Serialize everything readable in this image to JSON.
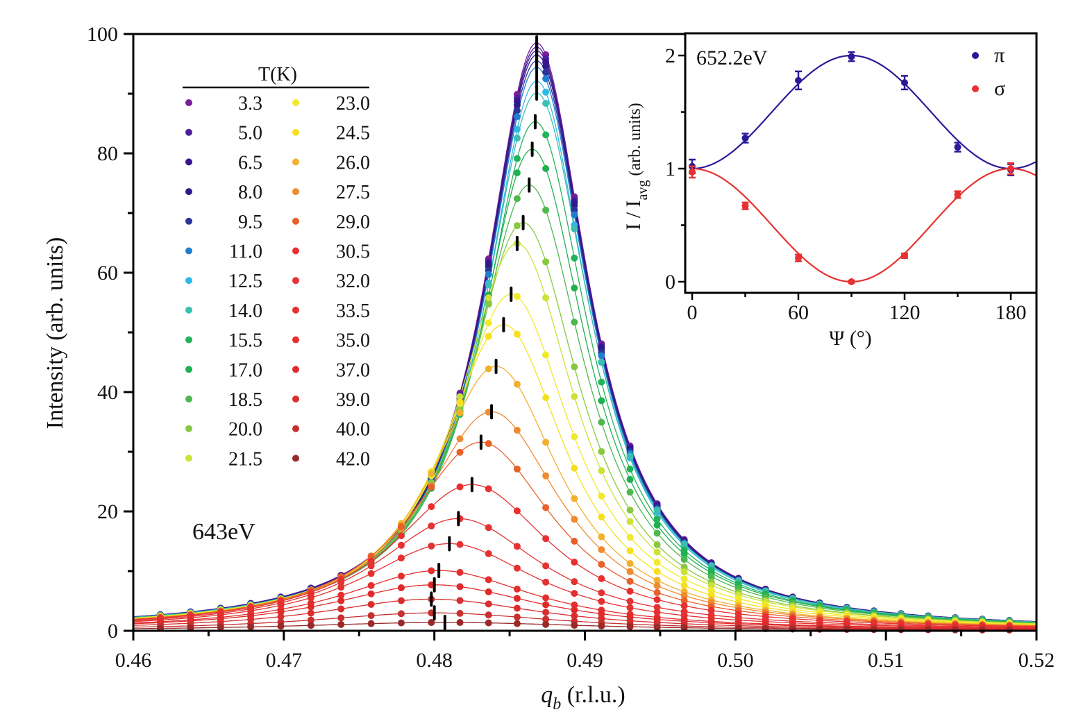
{
  "chart_data": [
    {
      "type": "scatter",
      "xlabel": "q",
      "xlabel_sub": "b",
      "xlabel_unit": " (r.l.u.)",
      "ylabel": "Intensity (arb. units)",
      "annotation": "643eV",
      "xlim": [
        0.46,
        0.52
      ],
      "ylim": [
        0,
        100
      ],
      "xticks": [
        "0.46",
        "0.47",
        "0.48",
        "0.49",
        "0.50",
        "0.51",
        "0.52"
      ],
      "yticks": [
        "0",
        "20",
        "40",
        "60",
        "80",
        "100"
      ],
      "grid": false,
      "legend": {
        "title": "T(K)",
        "placement": "top-left"
      },
      "fit": "Lorentzian (amplitude, center, hwhm)",
      "q_samples": [
        0.4618,
        0.4638,
        0.4658,
        0.4678,
        0.4698,
        0.4718,
        0.4738,
        0.4758,
        0.4778,
        0.4798,
        0.4817,
        0.4836,
        0.4855,
        0.4874,
        0.4893,
        0.4911,
        0.493,
        0.4948,
        0.4966,
        0.4984,
        0.5002,
        0.502,
        0.5038,
        0.5056,
        0.5074,
        0.5092,
        0.511,
        0.5128,
        0.5146,
        0.5164,
        0.5182
      ],
      "series": [
        {
          "name": "3.3",
          "color": "#7b1e9a",
          "amplitude": 98.5,
          "center": 0.4868,
          "hwhm": 0.0042
        },
        {
          "name": "5.0",
          "color": "#4a1f9a",
          "amplitude": 97.8,
          "center": 0.4868,
          "hwhm": 0.0042
        },
        {
          "name": "6.5",
          "color": "#3a1490",
          "amplitude": 97.2,
          "center": 0.4868,
          "hwhm": 0.0042
        },
        {
          "name": "8.0",
          "color": "#2e1a8a",
          "amplitude": 96.5,
          "center": 0.4868,
          "hwhm": 0.0042
        },
        {
          "name": "9.5",
          "color": "#2b3596",
          "amplitude": 95.5,
          "center": 0.4868,
          "hwhm": 0.0042
        },
        {
          "name": "11.0",
          "color": "#1f7fce",
          "amplitude": 94.4,
          "center": 0.4868,
          "hwhm": 0.0042
        },
        {
          "name": "12.5",
          "color": "#30b8e6",
          "amplitude": 92.1,
          "center": 0.4868,
          "hwhm": 0.0042
        },
        {
          "name": "14.0",
          "color": "#3bbfb0",
          "amplitude": 90.1,
          "center": 0.4868,
          "hwhm": 0.0043
        },
        {
          "name": "15.5",
          "color": "#22b35a",
          "amplitude": 85.3,
          "center": 0.4867,
          "hwhm": 0.0043
        },
        {
          "name": "17.0",
          "color": "#20b050",
          "amplitude": 80.7,
          "center": 0.4865,
          "hwhm": 0.0044
        },
        {
          "name": "18.5",
          "color": "#4cb84e",
          "amplitude": 74.7,
          "center": 0.4863,
          "hwhm": 0.0045
        },
        {
          "name": "20.0",
          "color": "#88c840",
          "amplitude": 68.4,
          "center": 0.4859,
          "hwhm": 0.0046
        },
        {
          "name": "21.5",
          "color": "#cce23a",
          "amplitude": 64.9,
          "center": 0.4855,
          "hwhm": 0.0047
        },
        {
          "name": "23.0",
          "color": "#f0ea2a",
          "amplitude": 56.4,
          "center": 0.4851,
          "hwhm": 0.0049
        },
        {
          "name": "24.5",
          "color": "#f5e020",
          "amplitude": 51.3,
          "center": 0.4846,
          "hwhm": 0.005
        },
        {
          "name": "26.0",
          "color": "#f2b030",
          "amplitude": 44.3,
          "center": 0.4841,
          "hwhm": 0.0052
        },
        {
          "name": "27.5",
          "color": "#f08a30",
          "amplitude": 36.7,
          "center": 0.4838,
          "hwhm": 0.0056
        },
        {
          "name": "29.0",
          "color": "#e8602a",
          "amplitude": 31.6,
          "center": 0.4831,
          "hwhm": 0.0059
        },
        {
          "name": "30.5",
          "color": "#e83030",
          "amplitude": 24.5,
          "center": 0.4825,
          "hwhm": 0.0064
        },
        {
          "name": "32.0",
          "color": "#e53232",
          "amplitude": 18.8,
          "center": 0.4816,
          "hwhm": 0.0068
        },
        {
          "name": "33.5",
          "color": "#e53030",
          "amplitude": 14.6,
          "center": 0.481,
          "hwhm": 0.0072
        },
        {
          "name": "35.0",
          "color": "#e52e2e",
          "amplitude": 10.1,
          "center": 0.4803,
          "hwhm": 0.0078
        },
        {
          "name": "37.0",
          "color": "#e02a2a",
          "amplitude": 7.7,
          "center": 0.48,
          "hwhm": 0.0085
        },
        {
          "name": "39.0",
          "color": "#d82e2e",
          "amplitude": 5.3,
          "center": 0.4798,
          "hwhm": 0.009
        },
        {
          "name": "40.0",
          "color": "#c83030",
          "amplitude": 3.0,
          "center": 0.48,
          "hwhm": 0.01
        },
        {
          "name": "42.0",
          "color": "#9a2a2a",
          "amplitude": 1.4,
          "center": 0.4807,
          "hwhm": 0.012
        }
      ]
    },
    {
      "type": "scatter",
      "annotation": "652.2eV",
      "xlabel": "Ψ (°)",
      "ylabel": "I / I",
      "ylabel_sub": "avg",
      "ylabel_unit": " (arb. units)",
      "xlim": [
        0,
        194
      ],
      "ylim": [
        -0.1,
        2.2
      ],
      "xticks": [
        "0",
        "60",
        "120",
        "180"
      ],
      "yticks": [
        "0",
        "1",
        "2"
      ],
      "legend": {
        "placement": "top-right"
      },
      "x": [
        0,
        30,
        60,
        90,
        120,
        150,
        180
      ],
      "series": [
        {
          "name": "π",
          "color": "#2a1a9a",
          "values": [
            1.02,
            1.27,
            1.78,
            1.99,
            1.76,
            1.19,
            0.99
          ],
          "errors": [
            0.06,
            0.04,
            0.08,
            0.04,
            0.06,
            0.04,
            0.05
          ],
          "fit": "1 + sin²Ψ"
        },
        {
          "name": "σ",
          "color": "#e83030",
          "values": [
            0.97,
            0.67,
            0.21,
            0.0,
            0.23,
            0.77,
            1.0
          ],
          "errors": [
            0.05,
            0.03,
            0.03,
            0.01,
            0.02,
            0.03,
            0.05
          ],
          "fit": "cos²Ψ"
        }
      ]
    }
  ]
}
